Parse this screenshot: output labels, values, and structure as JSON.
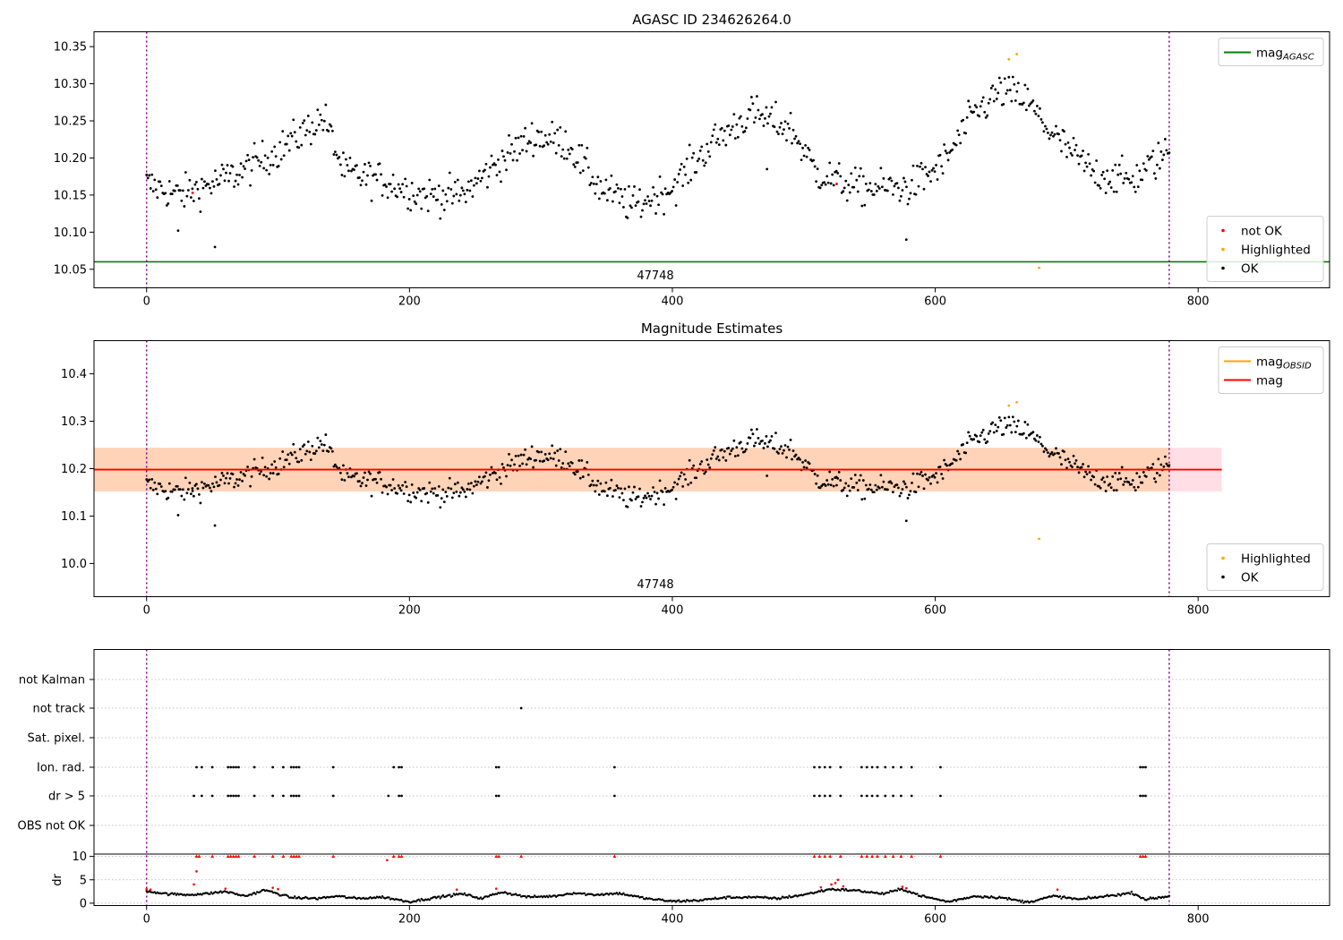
{
  "chart_data": [
    {
      "type": "scatter",
      "title": "AGASC ID 234626264.0",
      "xlabel": "",
      "ylabel": "",
      "xlim": [
        -40,
        900
      ],
      "ylim": [
        10.025,
        10.37
      ],
      "xticks": [
        0,
        200,
        400,
        600,
        800
      ],
      "yticks": [
        10.05,
        10.1,
        10.15,
        10.2,
        10.25,
        10.3,
        10.35
      ],
      "ytick_labels": [
        "10.05",
        "10.10",
        "10.15",
        "10.20",
        "10.25",
        "10.30",
        "10.35"
      ],
      "obsid_label": "47748",
      "obsid_label_x": 389,
      "boundaries": [
        0,
        778
      ],
      "boundary_color": "#800080",
      "hlines": [
        {
          "y": 10.06,
          "color": "#008000",
          "name": "mag_AGASC"
        }
      ],
      "ok_trend": [
        [
          0,
          10.165
        ],
        [
          25,
          10.15
        ],
        [
          50,
          10.165
        ],
        [
          70,
          10.18
        ],
        [
          100,
          10.21
        ],
        [
          135,
          10.255
        ],
        [
          150,
          10.18
        ],
        [
          180,
          10.17
        ],
        [
          210,
          10.15
        ],
        [
          240,
          10.15
        ],
        [
          265,
          10.19
        ],
        [
          295,
          10.23
        ],
        [
          320,
          10.22
        ],
        [
          345,
          10.16
        ],
        [
          370,
          10.135
        ],
        [
          400,
          10.16
        ],
        [
          430,
          10.22
        ],
        [
          460,
          10.26
        ],
        [
          490,
          10.24
        ],
        [
          510,
          10.18
        ],
        [
          540,
          10.16
        ],
        [
          580,
          10.16
        ],
        [
          605,
          10.19
        ],
        [
          630,
          10.26
        ],
        [
          650,
          10.29
        ],
        [
          668,
          10.28
        ],
        [
          690,
          10.23
        ],
        [
          720,
          10.18
        ],
        [
          750,
          10.17
        ],
        [
          778,
          10.21
        ]
      ],
      "ok_noise": 0.022,
      "ok_count": 760,
      "ok_outliers": [
        [
          24,
          10.102
        ],
        [
          52,
          10.08
        ],
        [
          578,
          10.09
        ],
        [
          472,
          10.185
        ]
      ],
      "not_ok": [
        [
          35,
          10.153
        ],
        [
          525,
          10.165
        ]
      ],
      "highlighted": [
        [
          656,
          10.333
        ],
        [
          662,
          10.34
        ],
        [
          679,
          10.052
        ]
      ],
      "legends": [
        {
          "position": "upper right",
          "entries": [
            {
              "label": "mag",
              "sub": "AGASC",
              "kind": "line",
              "color": "#008000"
            }
          ]
        },
        {
          "position": "lower right",
          "entries": [
            {
              "label": "not OK",
              "kind": "dot",
              "color": "#ff0000"
            },
            {
              "label": "Highlighted",
              "kind": "dot",
              "color": "#ffa500"
            },
            {
              "label": "OK",
              "kind": "dot",
              "color": "#000000"
            }
          ]
        }
      ]
    },
    {
      "type": "scatter",
      "title": "Magnitude Estimates",
      "xlabel": "",
      "ylabel": "",
      "xlim": [
        -40,
        900
      ],
      "ylim": [
        9.93,
        10.47
      ],
      "xticks": [
        0,
        200,
        400,
        600,
        800
      ],
      "yticks": [
        10.0,
        10.1,
        10.2,
        10.3,
        10.4
      ],
      "ytick_labels": [
        "10.0",
        "10.1",
        "10.2",
        "10.3",
        "10.4"
      ],
      "obsid_label": "47748",
      "obsid_label_x": 389,
      "boundaries": [
        0,
        778
      ],
      "mag_line": {
        "y": 10.198,
        "x": [
          -40,
          818
        ],
        "color": "#ff0000",
        "name": "mag"
      },
      "mag_band": {
        "y": [
          10.152,
          10.244
        ],
        "x": [
          -40,
          818
        ],
        "color": "#ffc0cb"
      },
      "mag_obsid": {
        "y": 10.198,
        "band": [
          10.152,
          10.244
        ],
        "x": [
          -40,
          778
        ],
        "color": "#ffa500",
        "name": "mag_OBSID"
      },
      "ok_trend_ref": 0,
      "highlighted": [
        [
          656,
          10.333
        ],
        [
          662,
          10.34
        ],
        [
          679,
          10.052
        ]
      ],
      "legends": [
        {
          "position": "upper right",
          "entries": [
            {
              "label": "mag",
              "sub": "OBSID",
              "kind": "line",
              "color": "#ffa500"
            },
            {
              "label": "mag",
              "kind": "line",
              "color": "#ff0000"
            }
          ]
        },
        {
          "position": "lower right",
          "entries": [
            {
              "label": "Highlighted",
              "kind": "dot",
              "color": "#ffa500"
            },
            {
              "label": "OK",
              "kind": "dot",
              "color": "#000000"
            }
          ]
        }
      ]
    },
    {
      "type": "scatter",
      "title": "",
      "xlabel": "",
      "ylabel": "",
      "xlim": [
        -40,
        900
      ],
      "xticks": [
        0,
        200,
        400,
        600,
        800
      ],
      "boundaries": [
        0,
        778
      ],
      "flag_rows": [
        "not Kalman",
        "not track",
        "Sat. pixel.",
        "Ion. rad.",
        "dr > 5",
        "OBS not OK"
      ],
      "flag_points": {
        "not track": [
          285
        ],
        "Ion. rad.": [
          38,
          42,
          50,
          62,
          64,
          66,
          68,
          70,
          82,
          96,
          104,
          110,
          112,
          114,
          116,
          142,
          188,
          192,
          194,
          266,
          268,
          356,
          508,
          512,
          516,
          520,
          528,
          544,
          548,
          552,
          556,
          562,
          568,
          574,
          582,
          604,
          756,
          758,
          760
        ],
        "dr > 5": [
          36,
          42,
          50,
          62,
          64,
          66,
          68,
          70,
          82,
          96,
          104,
          110,
          112,
          114,
          116,
          142,
          184,
          192,
          194,
          266,
          268,
          356,
          508,
          512,
          516,
          520,
          528,
          544,
          548,
          552,
          556,
          562,
          568,
          574,
          582,
          604,
          756,
          758,
          760
        ]
      }
    },
    {
      "type": "scatter",
      "title": "",
      "xlabel": "",
      "ylabel": "dr",
      "xlim": [
        -40,
        900
      ],
      "ylim": [
        -0.5,
        10.5
      ],
      "xticks": [
        0,
        200,
        400,
        600,
        800
      ],
      "yticks": [
        0,
        5,
        10
      ],
      "ytick_labels": [
        "0",
        "5",
        "10"
      ],
      "boundaries": [
        0,
        778
      ],
      "red_capped": [
        38,
        40,
        50,
        62,
        64,
        66,
        68,
        70,
        82,
        96,
        104,
        110,
        112,
        114,
        116,
        142,
        188,
        192,
        194,
        266,
        268,
        285,
        356,
        508,
        512,
        516,
        520,
        528,
        544,
        548,
        552,
        556,
        562,
        568,
        574,
        582,
        604,
        756,
        758,
        760
      ],
      "red_points": [
        [
          0,
          3
        ],
        [
          3,
          2.9
        ],
        [
          36,
          4
        ],
        [
          38,
          6.8
        ],
        [
          60,
          3.1
        ],
        [
          96,
          3.3
        ],
        [
          100,
          3.0
        ],
        [
          183,
          9.2
        ],
        [
          236,
          2.9
        ],
        [
          266,
          3.1
        ],
        [
          513,
          3.4
        ],
        [
          521,
          4.0
        ],
        [
          524,
          4.3
        ],
        [
          526,
          5.0
        ],
        [
          530,
          3.6
        ],
        [
          575,
          3.5
        ],
        [
          578,
          3.2
        ],
        [
          693,
          2.9
        ]
      ],
      "dr_trend": [
        [
          0,
          2.6
        ],
        [
          15,
          2.0
        ],
        [
          30,
          1.8
        ],
        [
          45,
          2.0
        ],
        [
          60,
          2.5
        ],
        [
          75,
          1.5
        ],
        [
          90,
          2.8
        ],
        [
          110,
          1.2
        ],
        [
          130,
          1.0
        ],
        [
          145,
          1.5
        ],
        [
          160,
          1.0
        ],
        [
          180,
          1.3
        ],
        [
          200,
          0.3
        ],
        [
          220,
          1.2
        ],
        [
          240,
          2.0
        ],
        [
          255,
          1.0
        ],
        [
          270,
          2.4
        ],
        [
          290,
          1.3
        ],
        [
          310,
          1.5
        ],
        [
          325,
          2.2
        ],
        [
          340,
          1.8
        ],
        [
          360,
          2.1
        ],
        [
          380,
          1.0
        ],
        [
          400,
          0.4
        ],
        [
          420,
          0.6
        ],
        [
          440,
          1.2
        ],
        [
          460,
          1.3
        ],
        [
          480,
          1.0
        ],
        [
          500,
          1.8
        ],
        [
          520,
          3.0
        ],
        [
          540,
          2.7
        ],
        [
          560,
          2.0
        ],
        [
          575,
          3.0
        ],
        [
          590,
          1.5
        ],
        [
          610,
          0.3
        ],
        [
          630,
          1.5
        ],
        [
          650,
          1.2
        ],
        [
          670,
          0.2
        ],
        [
          690,
          1.5
        ],
        [
          710,
          0.8
        ],
        [
          730,
          1.5
        ],
        [
          750,
          2.2
        ],
        [
          760,
          0.8
        ],
        [
          778,
          1.5
        ]
      ]
    }
  ]
}
